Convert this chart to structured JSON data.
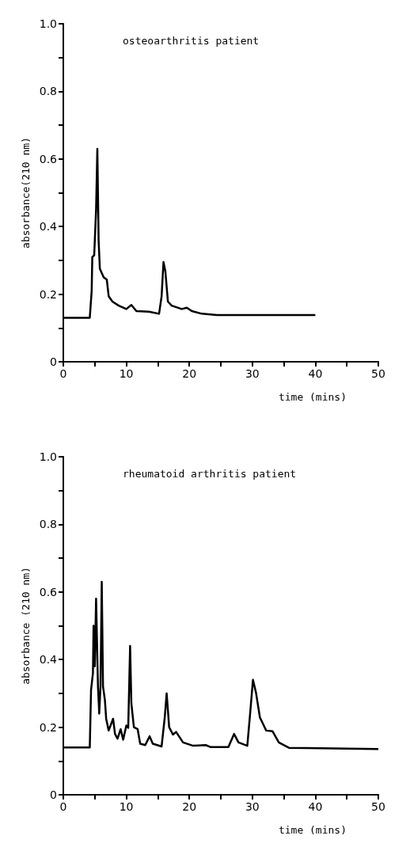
{
  "chart_data": [
    {
      "type": "line",
      "title": "osteoarthritis patient",
      "xlabel": "time (mins)",
      "ylabel": "absorbance(210 nm)",
      "xlim": [
        0,
        50
      ],
      "ylim": [
        0,
        1.0
      ],
      "xticks": [
        0,
        {
          "value": 5,
          "label": null
        },
        10,
        {
          "value": 15,
          "label": null
        },
        20,
        {
          "value": 25,
          "label": null
        },
        30,
        {
          "value": 35,
          "label": null
        },
        40,
        {
          "value": 45,
          "label": null
        },
        50
      ],
      "yticks": [
        0,
        {
          "value": 0.1,
          "label": null
        },
        {
          "value": 0.2,
          "label": "0.2"
        },
        {
          "value": 0.3,
          "label": null
        },
        {
          "value": 0.4,
          "label": "0.4"
        },
        {
          "value": 0.5,
          "label": null
        },
        {
          "value": 0.6,
          "label": "0.6"
        },
        {
          "value": 0.7,
          "label": null
        },
        {
          "value": 0.8,
          "label": "0.8"
        },
        {
          "value": 0.9,
          "label": null
        },
        {
          "value": 1.0,
          "label": "1.0"
        }
      ],
      "grid": false,
      "marker": "none",
      "line_style": "solid",
      "series": [
        {
          "color": "#000000",
          "x": [
            0,
            4.2,
            4.5,
            4.6,
            4.9,
            5.2,
            5.4,
            5.6,
            5.8,
            6.4,
            6.9,
            7.2,
            7.8,
            8.8,
            10,
            10.8,
            11.6,
            13.6,
            15.2,
            15.6,
            15.9,
            16.2,
            16.6,
            17.2,
            18.8,
            19.6,
            20.4,
            22,
            24.4,
            34.4,
            40
          ],
          "values": [
            0.13,
            0.13,
            0.21,
            0.31,
            0.315,
            0.45,
            0.63,
            0.36,
            0.275,
            0.25,
            0.243,
            0.194,
            0.178,
            0.166,
            0.156,
            0.168,
            0.15,
            0.148,
            0.142,
            0.194,
            0.295,
            0.267,
            0.178,
            0.166,
            0.156,
            0.16,
            0.15,
            0.142,
            0.138,
            0.138,
            0.138
          ]
        }
      ]
    },
    {
      "type": "line",
      "title": "rheumatoid arthritis patient",
      "xlabel": "time (mins)",
      "ylabel": "absorbance (210 nm)",
      "xlim": [
        0,
        50
      ],
      "ylim": [
        0,
        1.0
      ],
      "xticks": [
        0,
        {
          "value": 5,
          "label": null
        },
        10,
        {
          "value": 15,
          "label": null
        },
        20,
        {
          "value": 25,
          "label": null
        },
        30,
        {
          "value": 35,
          "label": null
        },
        40,
        {
          "value": 45,
          "label": null
        },
        50
      ],
      "yticks": [
        0,
        {
          "value": 0.1,
          "label": null
        },
        {
          "value": 0.2,
          "label": "0.2"
        },
        {
          "value": 0.3,
          "label": null
        },
        {
          "value": 0.4,
          "label": "0.4"
        },
        {
          "value": 0.5,
          "label": null
        },
        {
          "value": 0.6,
          "label": "0.6"
        },
        {
          "value": 0.7,
          "label": null
        },
        {
          "value": 0.8,
          "label": "0.8"
        },
        {
          "value": 0.9,
          "label": null
        },
        {
          "value": 1.0,
          "label": "1.0"
        }
      ],
      "grid": false,
      "marker": "none",
      "line_style": "solid",
      "series": [
        {
          "color": "#000000",
          "x": [
            0,
            4.2,
            4.4,
            4.7,
            4.8,
            5.0,
            5.2,
            5.5,
            5.7,
            5.9,
            6.1,
            6.3,
            6.6,
            6.8,
            7.2,
            7.9,
            8.2,
            8.6,
            9.1,
            9.5,
            10,
            10.3,
            10.6,
            10.8,
            11.2,
            11.8,
            12.2,
            13,
            13.7,
            14.2,
            15.6,
            16.1,
            16.4,
            16.8,
            17.4,
            17.9,
            19,
            20.6,
            22.6,
            23.4,
            26.2,
            27.1,
            27.8,
            29.2,
            29.6,
            30.1,
            30.6,
            31.2,
            32.2,
            33.2,
            34.2,
            35.8,
            38.6,
            50
          ],
          "values": [
            0.14,
            0.14,
            0.31,
            0.36,
            0.5,
            0.38,
            0.58,
            0.32,
            0.24,
            0.32,
            0.63,
            0.32,
            0.28,
            0.225,
            0.19,
            0.225,
            0.18,
            0.166,
            0.194,
            0.163,
            0.205,
            0.198,
            0.44,
            0.27,
            0.2,
            0.194,
            0.151,
            0.147,
            0.173,
            0.151,
            0.143,
            0.229,
            0.3,
            0.2,
            0.178,
            0.186,
            0.155,
            0.145,
            0.147,
            0.141,
            0.141,
            0.18,
            0.155,
            0.145,
            0.229,
            0.34,
            0.3,
            0.229,
            0.19,
            0.188,
            0.155,
            0.139,
            0.138,
            0.135
          ]
        }
      ]
    }
  ]
}
